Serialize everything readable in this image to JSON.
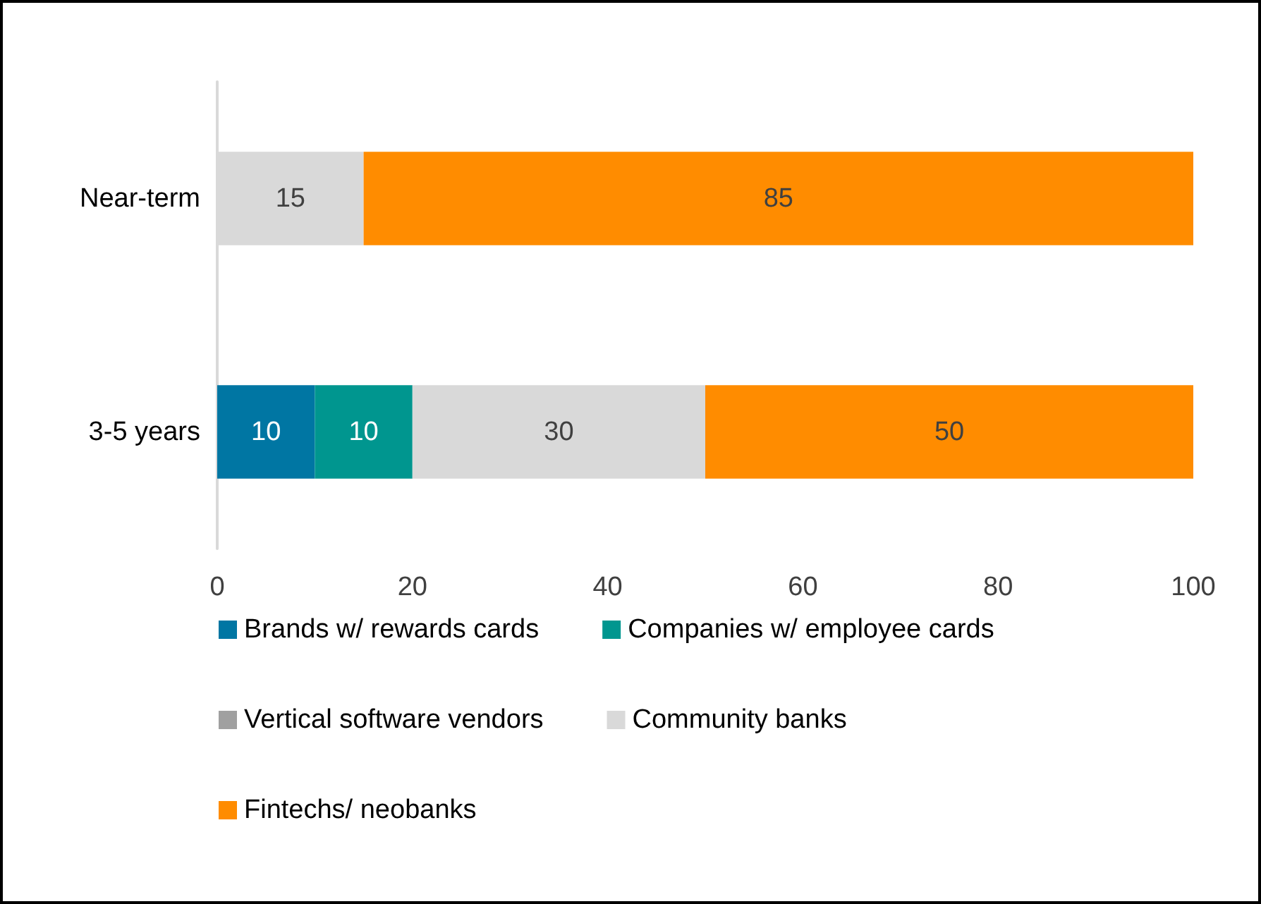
{
  "chart_data": {
    "type": "bar",
    "orientation": "horizontal",
    "stacked": true,
    "categories": [
      "Near-term",
      "3-5 years"
    ],
    "series": [
      {
        "name": "Brands w/ rewards cards",
        "color": "#0076a3",
        "values": [
          0,
          10
        ],
        "value_labels": [
          null,
          "10"
        ]
      },
      {
        "name": "Companies w/ employee cards",
        "color": "#00968f",
        "values": [
          0,
          10
        ],
        "value_labels": [
          null,
          "10"
        ]
      },
      {
        "name": "Vertical software vendors",
        "color": "#a0a0a0",
        "values": [
          0,
          0
        ],
        "value_labels": [
          null,
          null
        ]
      },
      {
        "name": "Community banks",
        "color": "#d9d9d9",
        "values": [
          15,
          30
        ],
        "value_labels": [
          "15",
          "30"
        ]
      },
      {
        "name": "Fintechs/ neobanks",
        "color": "#ff8c00",
        "values": [
          85,
          50
        ],
        "value_labels": [
          "85",
          "50"
        ]
      }
    ],
    "xlim": [
      0,
      100
    ],
    "xticks": [
      0,
      20,
      40,
      60,
      80,
      100
    ],
    "grid": false,
    "legend": "bottom"
  }
}
